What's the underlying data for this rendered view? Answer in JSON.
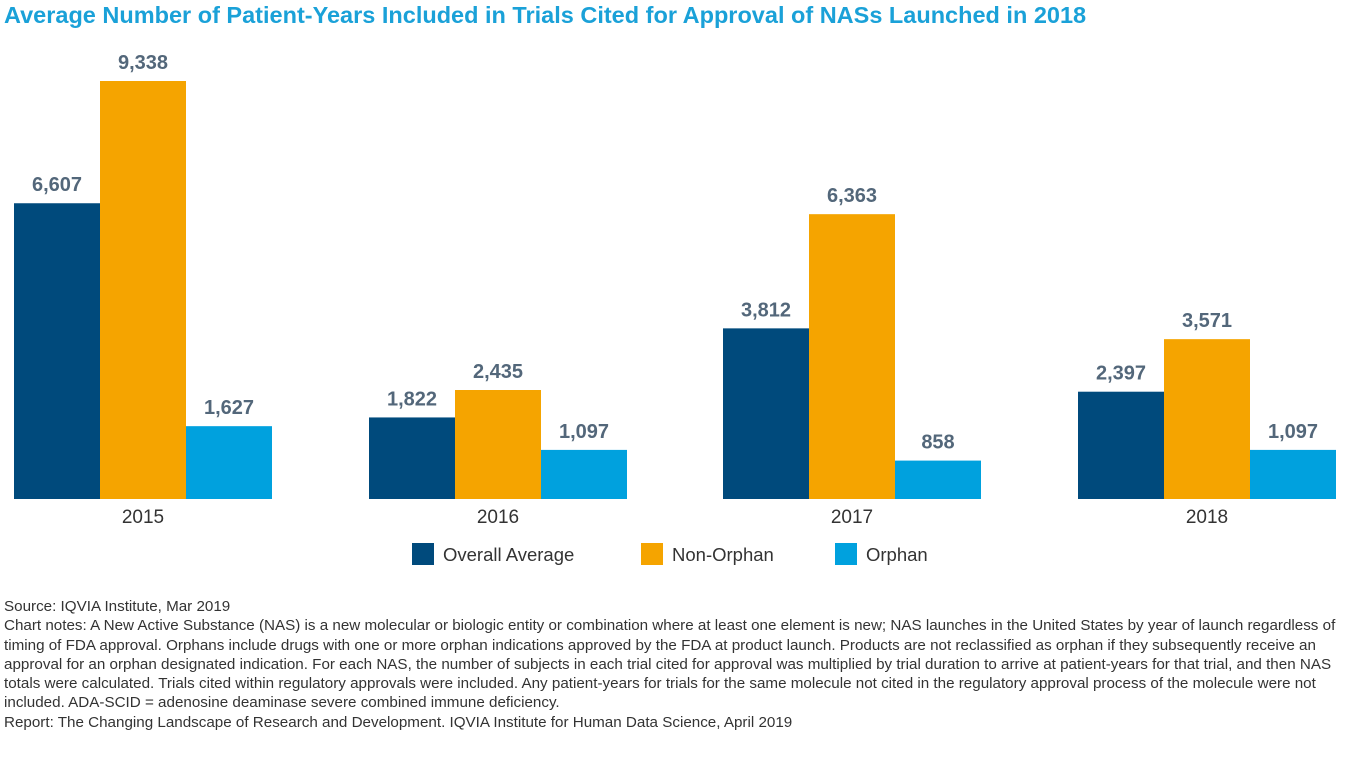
{
  "title": "Average Number of Patient-Years Included in Trials Cited for Approval of NASs Launched in 2018",
  "colors": {
    "title": "#1aa1d8",
    "overall_average": "#004a7c",
    "non_orphan": "#f5a400",
    "orphan": "#00a1de",
    "value_label": "#53677a",
    "axis_label": "#333333"
  },
  "chart_data": {
    "type": "bar",
    "categories": [
      "2015",
      "2016",
      "2017",
      "2018"
    ],
    "series": [
      {
        "name": "Overall Average",
        "values": [
          6607,
          1822,
          3812,
          2397
        ],
        "labels": [
          "6,607",
          "1,822",
          "3,812",
          "2,397"
        ]
      },
      {
        "name": "Non-Orphan",
        "values": [
          9338,
          2435,
          6363,
          3571
        ],
        "labels": [
          "9,338",
          "2,435",
          "6,363",
          "3,571"
        ]
      },
      {
        "name": "Orphan",
        "values": [
          1627,
          1097,
          858,
          1097
        ],
        "labels": [
          "1,627",
          "1,097",
          "858",
          "1,097"
        ]
      }
    ],
    "ylim": [
      0,
      9338
    ],
    "grid": false,
    "legend": "bottom-center"
  },
  "footer": {
    "source": "Source: IQVIA Institute, Mar 2019",
    "notes": "Chart notes: A New Active Substance (NAS) is a new molecular or biologic entity or combination where at least one element is new; NAS launches in the United States by year of launch regardless of timing of FDA approval. Orphans include drugs with one or more orphan indications approved by the FDA at product launch. Products are not reclassified as orphan if they subsequently receive an approval for an orphan designated indication. For each NAS, the number of subjects in each trial cited for approval was multiplied by trial duration to arrive at patient-years for that trial, and then NAS totals were calculated. Trials cited within regulatory approvals were included. Any patient-years for trials for the same molecule not cited in the regulatory approval process of the molecule were not included. ADA-SCID = adenosine deaminase severe combined immune deficiency.",
    "report": "Report: The Changing Landscape of Research and Development. IQVIA Institute for Human Data Science, April 2019"
  }
}
